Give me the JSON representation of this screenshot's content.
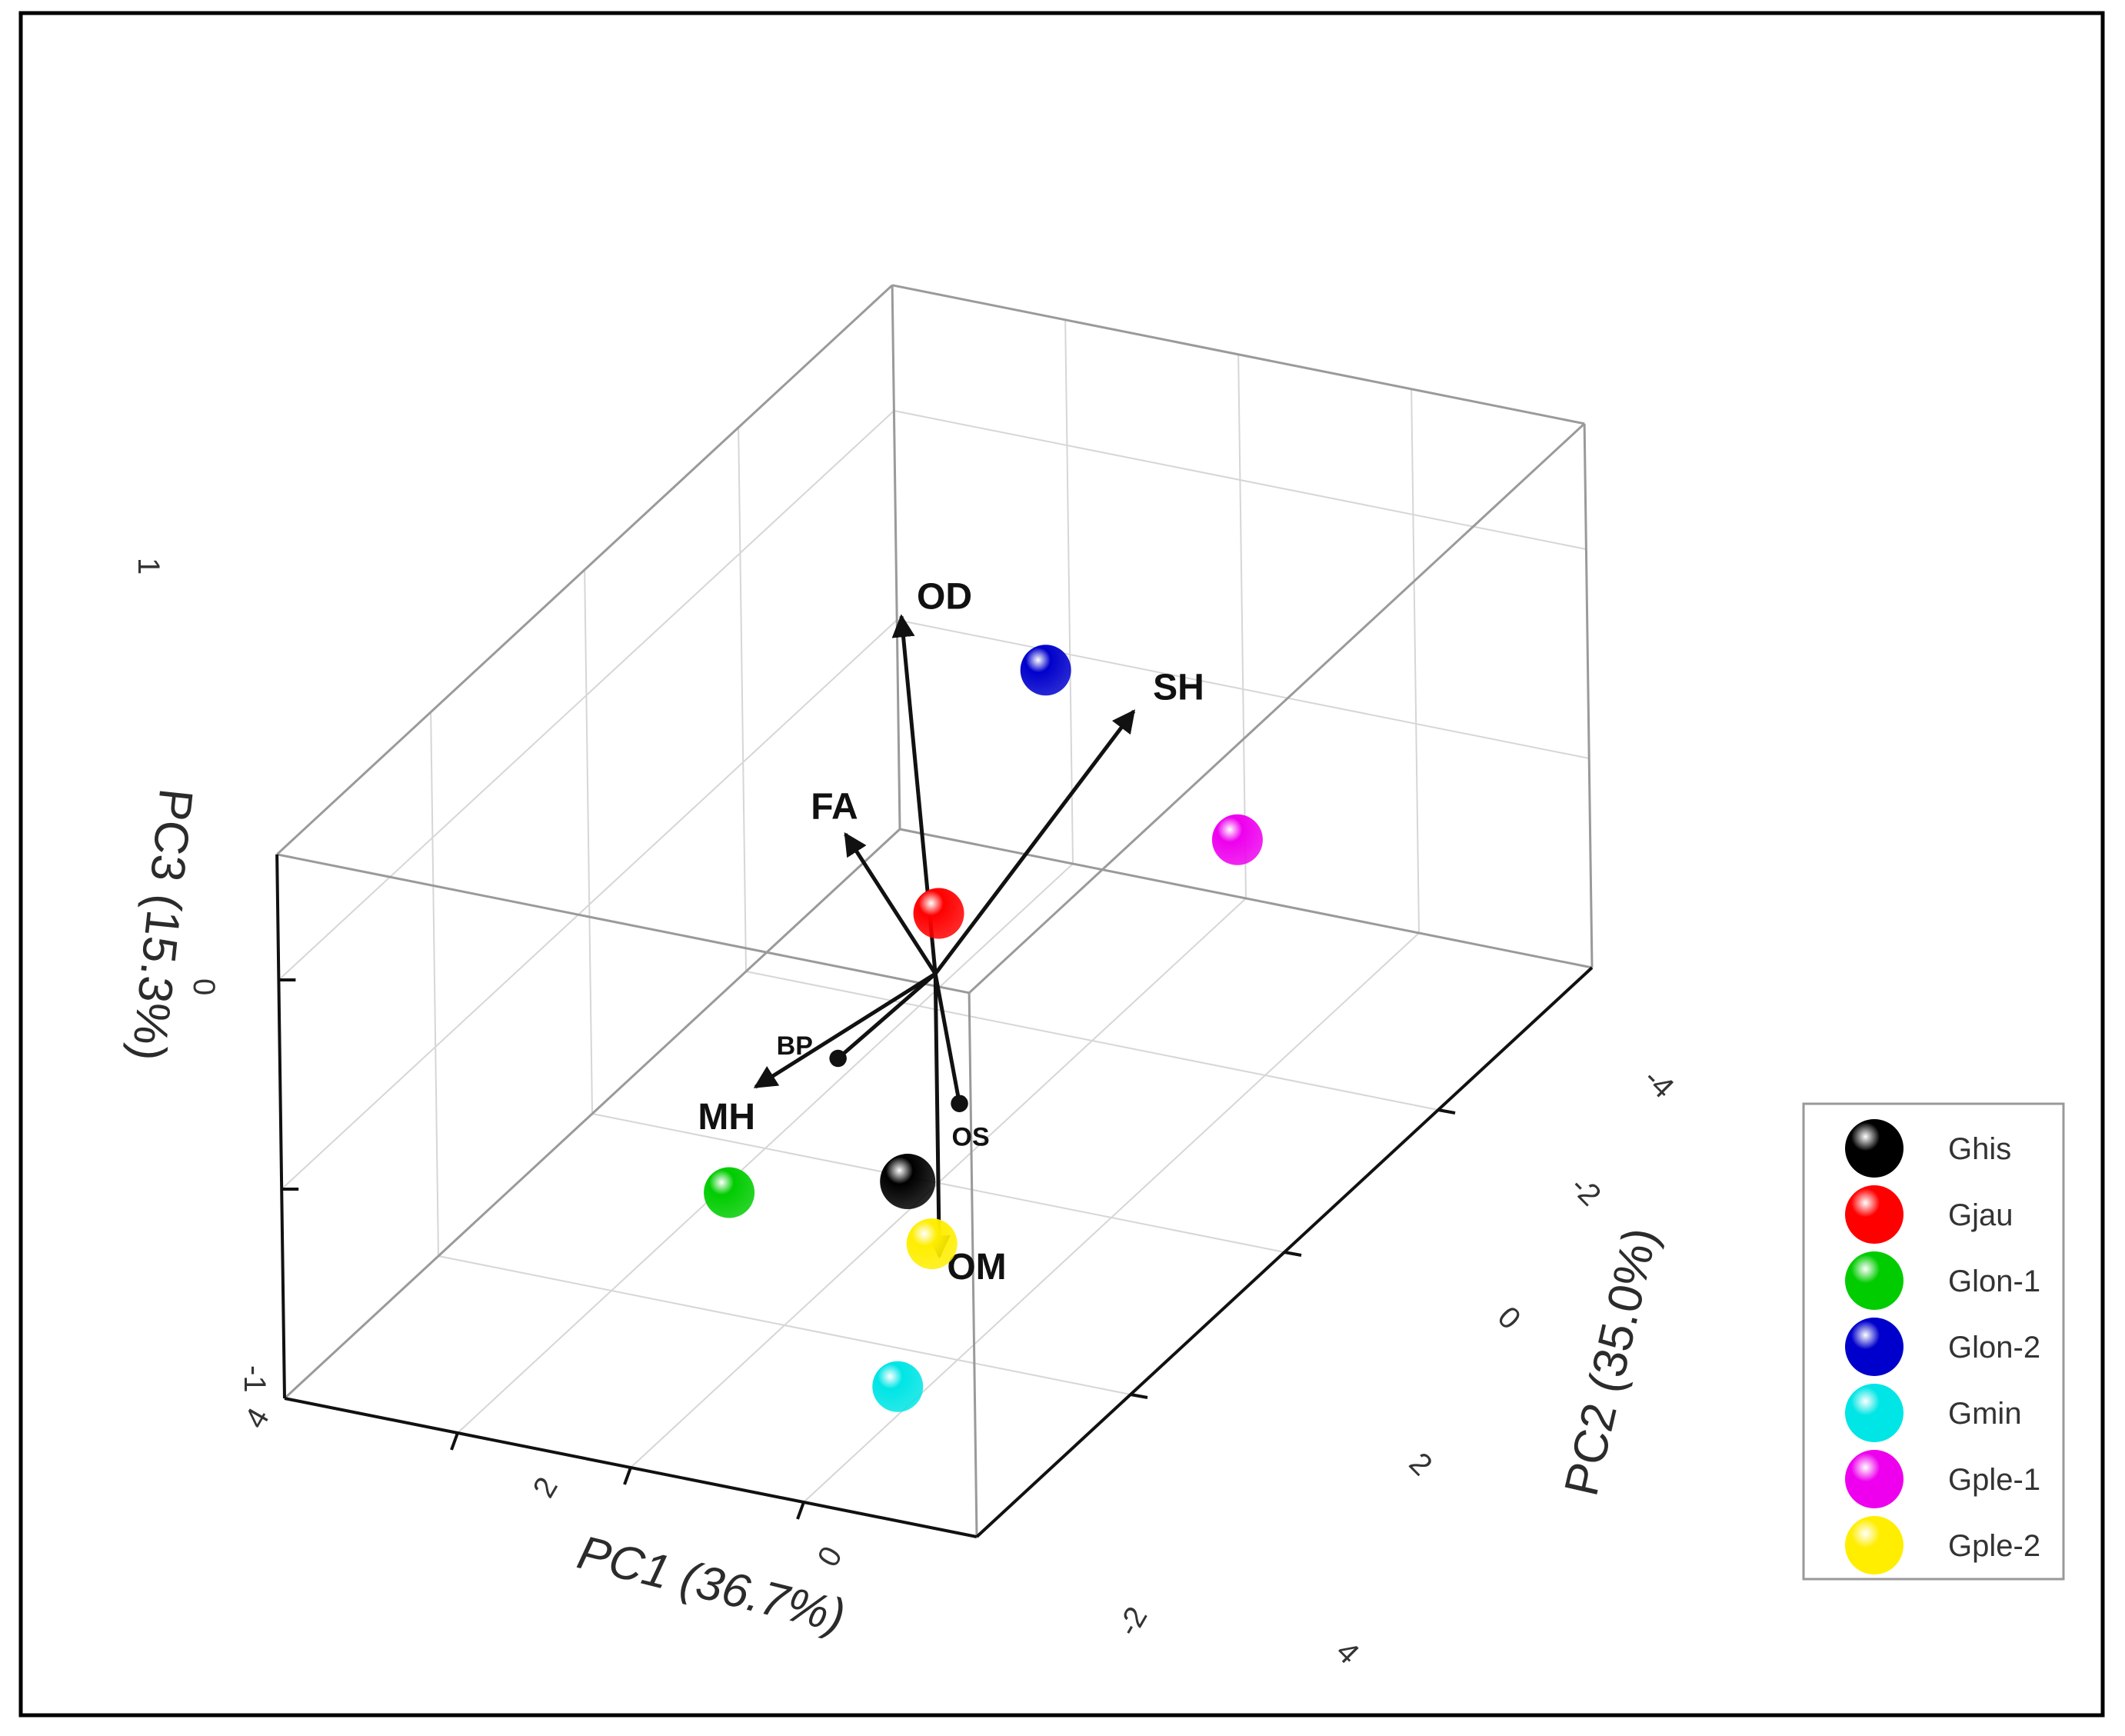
{
  "chart_data": {
    "type": "scatter",
    "subtype": "3d-pca-biplot",
    "axes": {
      "x": {
        "label": "PC1 (36.7%)",
        "ticks": [
          "4",
          "2",
          "0",
          "-2"
        ]
      },
      "y": {
        "label": "PC2 (35.0%)",
        "ticks": [
          "4",
          "2",
          "0",
          "-2",
          "-4"
        ]
      },
      "z": {
        "label": "PC3 (15.3%)",
        "ticks": [
          "-1",
          "0",
          "1"
        ]
      }
    },
    "points": [
      {
        "name": "Ghis",
        "color": "#000000",
        "pc1": -1.0,
        "pc2": 1.5,
        "pc3": -0.4
      },
      {
        "name": "Gjau",
        "color": "#ff0000",
        "pc1": -0.5,
        "pc2": 0.5,
        "pc3": 0.5
      },
      {
        "name": "Glon-1",
        "color": "#00cc00",
        "pc1": 0.8,
        "pc2": 1.8,
        "pc3": -0.5
      },
      {
        "name": "Glon-2",
        "color": "#0000cc",
        "pc1": 1.2,
        "pc2": -2.8,
        "pc3": 0.4
      },
      {
        "name": "Gmin",
        "color": "#00e5e5",
        "pc1": -0.4,
        "pc2": 1.0,
        "pc3": -1.6
      },
      {
        "name": "Gple-1",
        "color": "#ee00ee",
        "pc1": -2.8,
        "pc2": -0.8,
        "pc3": 0.6
      },
      {
        "name": "Gple-2",
        "color": "#ffee00",
        "pc1": -1.0,
        "pc2": 1.2,
        "pc3": -0.8
      }
    ],
    "vectors": [
      {
        "name": "OD",
        "pc1": 1.6,
        "pc2": -1.4,
        "pc3": 1.1
      },
      {
        "name": "SH",
        "pc1": -1.8,
        "pc2": -0.6,
        "pc3": 1.2
      },
      {
        "name": "FA",
        "pc1": 1.2,
        "pc2": -0.2,
        "pc3": 0.5
      },
      {
        "name": "MH",
        "pc1": 1.2,
        "pc2": 1.0,
        "pc3": -0.3
      },
      {
        "name": "BP",
        "pc1": 0.6,
        "pc2": 0.6,
        "pc3": -0.25
      },
      {
        "name": "OS",
        "pc1": -0.8,
        "pc2": 0.6,
        "pc3": -0.35
      },
      {
        "name": "OM",
        "pc1": 0.0,
        "pc2": 0.0,
        "pc3": -1.35
      }
    ],
    "legend": {
      "position": "right"
    },
    "grid": true
  }
}
